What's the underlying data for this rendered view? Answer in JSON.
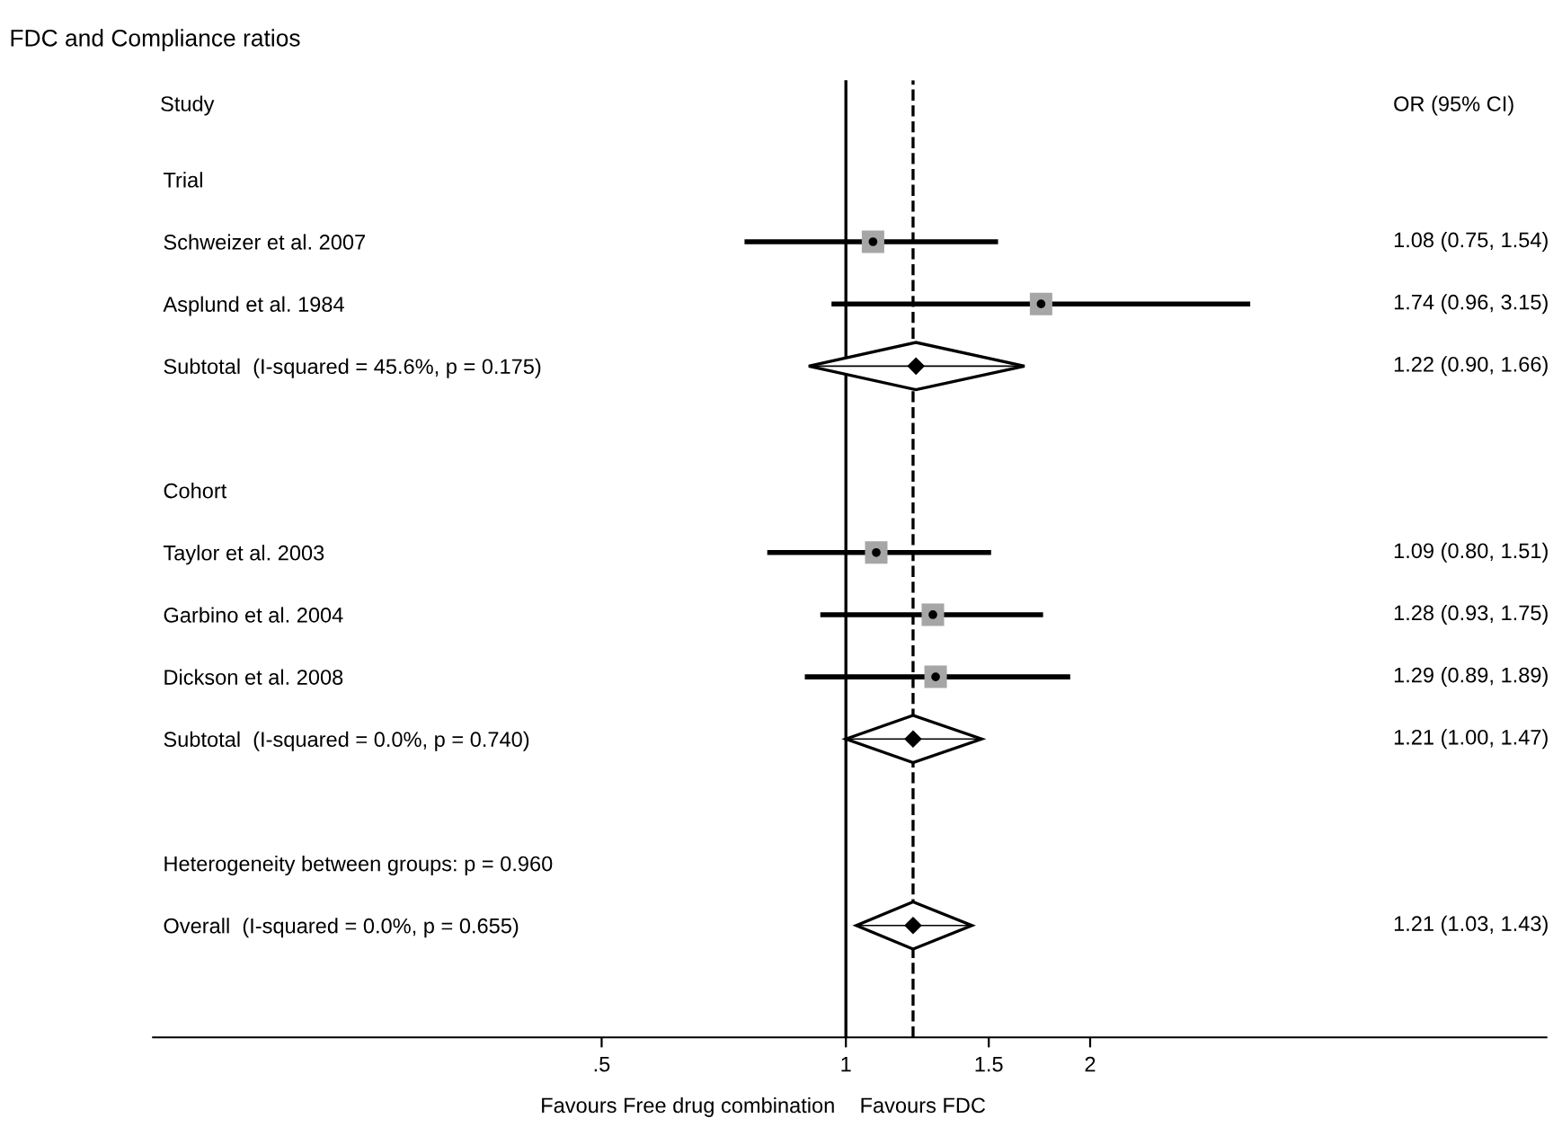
{
  "chart_data": {
    "type": "scatter",
    "orientation": "horizontal",
    "title": "FDC and Compliance ratios",
    "categories": [
      "Trial",
      "Schweizer et al. 2007",
      "Asplund et al. 1984",
      "Subtotal  (I-squared = 45.6%, p = 0.175)",
      null,
      "Cohort",
      "Taylor et al. 2003",
      "Garbino et al. 2004",
      "Dickson et al. 2008",
      "Subtotal  (I-squared = 0.0%, p = 0.740)",
      null,
      "Heterogeneity between groups: p = 0.960",
      "Overall  (I-squared = 0.0%, p = 0.655)"
    ],
    "series": [
      {
        "color": "#a6a6a6",
        "marker": "square",
        "values": [
          null,
          1.08,
          1.74,
          null,
          null,
          null,
          1.09,
          1.28,
          1.29,
          null,
          null,
          null,
          null
        ],
        "errors": [
          null,
          [
            0.75,
            1.54
          ],
          [
            0.96,
            3.15
          ],
          null,
          null,
          null,
          [
            0.8,
            1.51
          ],
          [
            0.93,
            1.75
          ],
          [
            0.89,
            1.89
          ],
          null,
          null,
          null,
          null
        ]
      },
      {
        "color": "#000000",
        "marker": "diamond",
        "values": [
          null,
          null,
          null,
          1.22,
          null,
          null,
          null,
          null,
          null,
          1.21,
          null,
          null,
          1.21
        ],
        "errors": [
          null,
          null,
          null,
          [
            0.9,
            1.66
          ],
          null,
          null,
          null,
          null,
          null,
          [
            1.0,
            1.47
          ],
          null,
          null,
          [
            1.03,
            1.43
          ]
        ]
      }
    ],
    "value_labels": [
      null,
      "1.08 (0.75, 1.54)",
      "1.74 (0.96, 3.15)",
      "1.22 (0.90, 1.66)",
      null,
      null,
      "1.09 (0.80, 1.51)",
      "1.28 (0.93, 1.75)",
      "1.29 (0.89, 1.89)",
      "1.21 (1.00, 1.47)",
      null,
      null,
      "1.21 (1.03, 1.43)"
    ],
    "log": "x",
    "xlim": [
      0.14,
      7.3
    ],
    "xticks": [
      {
        "value": 0.5,
        "label": ".5"
      },
      1,
      1.5,
      2
    ],
    "ref_lines": [
      {
        "axis": "x",
        "value": 1,
        "line_style": "solid"
      },
      {
        "axis": "x",
        "value": 1.21,
        "line_style": "dashed"
      }
    ],
    "annotations": [
      "Study",
      "OR (95% CI)",
      "Favours Free drug combination",
      "Favours FDC"
    ],
    "grid": false,
    "legend": false
  }
}
